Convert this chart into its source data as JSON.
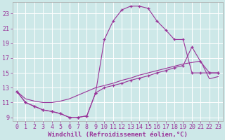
{
  "xlabel": "Windchill (Refroidissement éolien,°C)",
  "bg_color": "#cde8e8",
  "line_color": "#993399",
  "grid_color": "#b8d8d8",
  "line1_x": [
    0,
    1,
    2,
    3,
    4,
    5,
    6,
    7,
    8,
    9,
    10,
    11,
    12,
    13,
    14,
    15,
    16,
    17,
    18,
    19,
    20,
    21,
    22,
    23
  ],
  "line1_y": [
    12.5,
    11.0,
    10.5,
    10.0,
    9.8,
    9.5,
    9.0,
    9.0,
    9.2,
    12.3,
    19.5,
    22.0,
    23.5,
    24.0,
    24.0,
    23.7,
    22.0,
    20.8,
    19.5,
    19.5,
    15.0,
    15.0,
    15.0,
    15.0
  ],
  "line2_x": [
    0,
    1,
    2,
    3,
    4,
    5,
    6,
    7,
    8,
    9,
    10,
    11,
    12,
    13,
    14,
    15,
    16,
    17,
    18,
    19,
    20,
    21,
    22,
    23
  ],
  "line2_y": [
    12.5,
    11.0,
    10.5,
    10.0,
    9.8,
    9.5,
    9.0,
    9.0,
    9.2,
    12.3,
    13.0,
    13.3,
    13.6,
    14.0,
    14.3,
    14.6,
    15.0,
    15.3,
    15.7,
    16.0,
    18.5,
    16.5,
    15.0,
    15.0
  ],
  "line3_x": [
    0,
    1,
    2,
    3,
    4,
    5,
    6,
    7,
    8,
    9,
    10,
    11,
    12,
    13,
    14,
    15,
    16,
    17,
    18,
    19,
    20,
    21,
    22,
    23
  ],
  "line3_y": [
    12.5,
    11.5,
    11.2,
    11.0,
    11.0,
    11.2,
    11.5,
    12.0,
    12.5,
    13.0,
    13.3,
    13.6,
    14.0,
    14.3,
    14.7,
    15.0,
    15.3,
    15.6,
    15.9,
    16.2,
    16.4,
    16.6,
    14.2,
    14.5
  ],
  "xlim": [
    -0.5,
    23.5
  ],
  "ylim": [
    8.5,
    24.5
  ],
  "xticks": [
    0,
    1,
    2,
    3,
    4,
    5,
    6,
    7,
    8,
    9,
    10,
    11,
    12,
    13,
    14,
    15,
    16,
    17,
    18,
    19,
    20,
    21,
    22,
    23
  ],
  "yticks": [
    9,
    11,
    13,
    15,
    17,
    19,
    21,
    23
  ],
  "xlabel_fontsize": 6.5,
  "tick_fontsize": 6.0
}
